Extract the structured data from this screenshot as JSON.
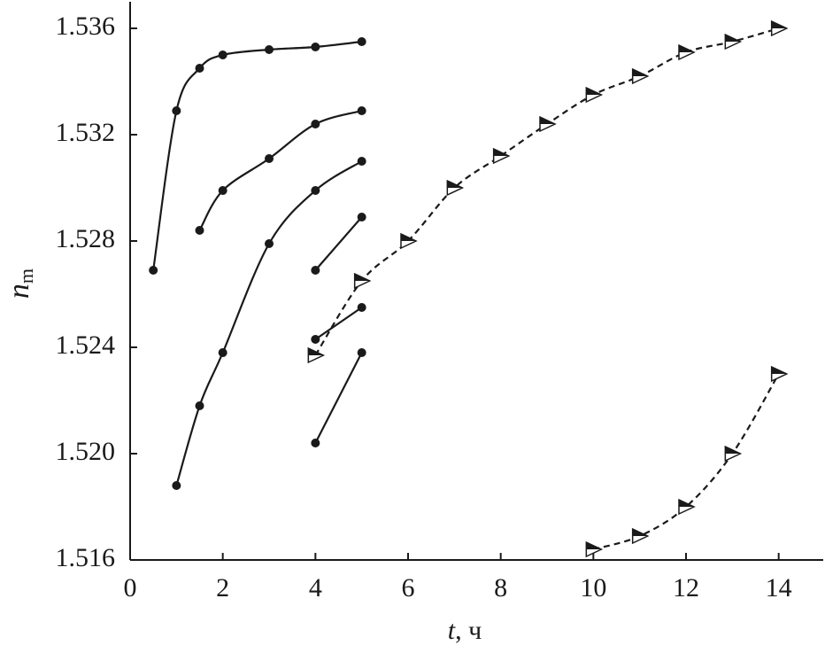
{
  "chart_data": {
    "type": "line",
    "xlabel": [
      "t",
      ", ч"
    ],
    "ylabel": [
      "n",
      "m"
    ],
    "xlim": [
      0,
      15
    ],
    "xticks": [
      0,
      2,
      4,
      6,
      8,
      10,
      12,
      14
    ],
    "ylim": [
      1.516,
      1.537
    ],
    "yticks": [
      1.516,
      {
        "value": 1.52,
        "label": "1.520"
      },
      1.524,
      1.528,
      1.532,
      1.536
    ],
    "series": [
      {
        "color": "#1a1a1a",
        "marker": "circle",
        "dashed": false,
        "x": [
          0.5,
          1,
          1.5,
          2,
          3,
          4,
          5
        ],
        "values": [
          1.5269,
          1.5329,
          1.5345,
          1.535,
          1.5352,
          1.5353,
          1.5355
        ]
      },
      {
        "color": "#1a1a1a",
        "marker": "circle",
        "dashed": false,
        "x": [
          1.5,
          2,
          3,
          4,
          5
        ],
        "values": [
          1.5284,
          1.5299,
          1.5311,
          1.5324,
          1.5329
        ]
      },
      {
        "color": "#1a1a1a",
        "marker": "circle",
        "dashed": false,
        "x": [
          1,
          1.5,
          2,
          3,
          4,
          5
        ],
        "values": [
          1.5188,
          1.5218,
          1.5238,
          1.5279,
          1.5299,
          1.531
        ]
      },
      {
        "color": "#1a1a1a",
        "marker": "circle",
        "dashed": false,
        "x": [
          4,
          5
        ],
        "values": [
          1.5269,
          1.5289
        ]
      },
      {
        "color": "#1a1a1a",
        "marker": "circle",
        "dashed": false,
        "x": [
          4,
          5
        ],
        "values": [
          1.5243,
          1.5255
        ]
      },
      {
        "color": "#1a1a1a",
        "marker": "circle",
        "dashed": false,
        "x": [
          4,
          5
        ],
        "values": [
          1.5204,
          1.5238
        ]
      },
      {
        "color": "#1a1a1a",
        "marker": "triangle",
        "dashed": true,
        "x": [
          4,
          5,
          6,
          7,
          8,
          9,
          10,
          11,
          12,
          13,
          14
        ],
        "values": [
          1.5237,
          1.5265,
          1.528,
          1.53,
          1.5312,
          1.5324,
          1.5335,
          1.5342,
          1.5351,
          1.5355,
          1.536
        ]
      },
      {
        "color": "#1a1a1a",
        "marker": "triangle",
        "dashed": true,
        "x": [
          10,
          11,
          12,
          13,
          14
        ],
        "values": [
          1.5164,
          1.5169,
          1.518,
          1.52,
          1.523
        ]
      }
    ]
  }
}
